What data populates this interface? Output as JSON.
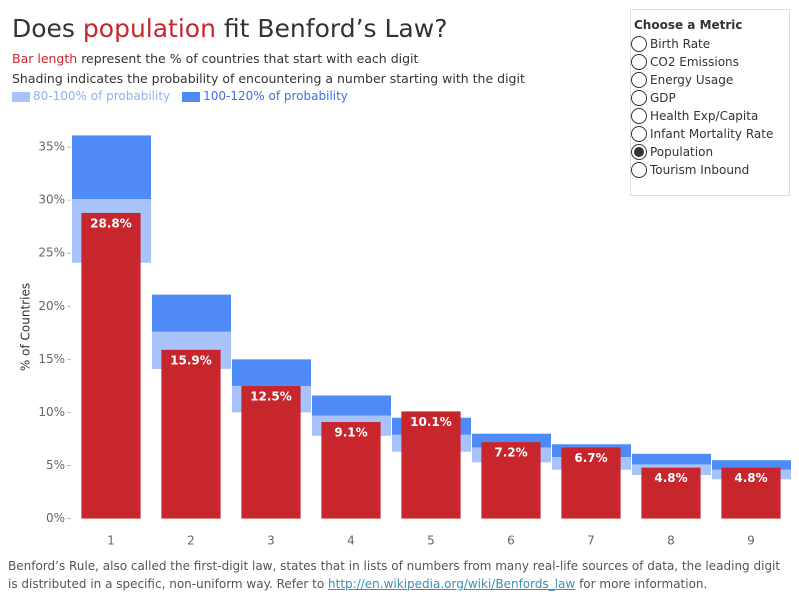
{
  "header": {
    "title": {
      "before": "Does",
      "highlight": "population",
      "after": "fit Benford’s Law?"
    },
    "subtitle_highlight": "Bar length",
    "subtitle_rest": "represent the % of countries that start with each digit",
    "subtitle2": "Shading indicates the probability of encountering a number starting with the digit"
  },
  "chart_data": {
    "type": "bar",
    "y_label": "% of Countries",
    "categories": [
      "1",
      "2",
      "3",
      "4",
      "5",
      "6",
      "7",
      "8",
      "9"
    ],
    "values": [
      28.8,
      15.9,
      12.5,
      9.1,
      10.1,
      7.2,
      6.7,
      4.8,
      4.8
    ],
    "value_labels": [
      "28.8%",
      "15.9%",
      "12.5%",
      "9.1%",
      "10.1%",
      "7.2%",
      "6.7%",
      "4.8%",
      "4.8%"
    ],
    "color": "#c8262d",
    "bands": [
      {
        "name": "80-100% of probability",
        "color": "#a8c3fa",
        "text_color": "#8fb0f5",
        "low": [
          24.1,
          14.1,
          10.0,
          7.8,
          6.3,
          5.3,
          4.6,
          4.1,
          3.7
        ],
        "high": [
          30.1,
          17.6,
          12.5,
          9.7,
          7.9,
          6.7,
          5.8,
          5.1,
          4.6
        ]
      },
      {
        "name": "100-120% of probability",
        "color": "#4e8bf6",
        "text_color": "#3d6fe6",
        "low": [
          30.1,
          17.6,
          12.5,
          9.7,
          7.9,
          6.7,
          5.8,
          5.1,
          4.6
        ],
        "high": [
          36.1,
          21.1,
          15.0,
          11.6,
          9.5,
          8.0,
          7.0,
          6.1,
          5.5
        ]
      }
    ],
    "ylim": [
      -0.7,
      36.8
    ],
    "yticks": [
      {
        "value": 0,
        "label": "0%"
      },
      {
        "value": 5,
        "label": "5%"
      },
      {
        "value": 10,
        "label": "10%"
      },
      {
        "value": 15,
        "label": "15%"
      },
      {
        "value": 20,
        "label": "20%"
      },
      {
        "value": 25,
        "label": "25%"
      },
      {
        "value": 30,
        "label": "30%"
      },
      {
        "value": 35,
        "label": "35%"
      }
    ],
    "grid": false
  },
  "controls": {
    "title": "Choose a Metric",
    "options": [
      {
        "label": "Birth Rate",
        "selected": false
      },
      {
        "label": "CO2 Emissions",
        "selected": false
      },
      {
        "label": "Energy Usage",
        "selected": false
      },
      {
        "label": "GDP",
        "selected": false
      },
      {
        "label": "Health Exp/Capita",
        "selected": false
      },
      {
        "label": "Infant Mortality Rate",
        "selected": false
      },
      {
        "label": "Population",
        "selected": true
      },
      {
        "label": "Tourism Inbound",
        "selected": false
      }
    ]
  },
  "footer": {
    "text_before": "Benford’s Rule, also called the first-digit law, states that in lists of numbers from many real-life sources of data, the leading digit is distributed in a specific, non-uniform way. Refer to",
    "link": "http://en.wikipedia.org/wiki/Benfords_law",
    "text_after": "for more information."
  }
}
